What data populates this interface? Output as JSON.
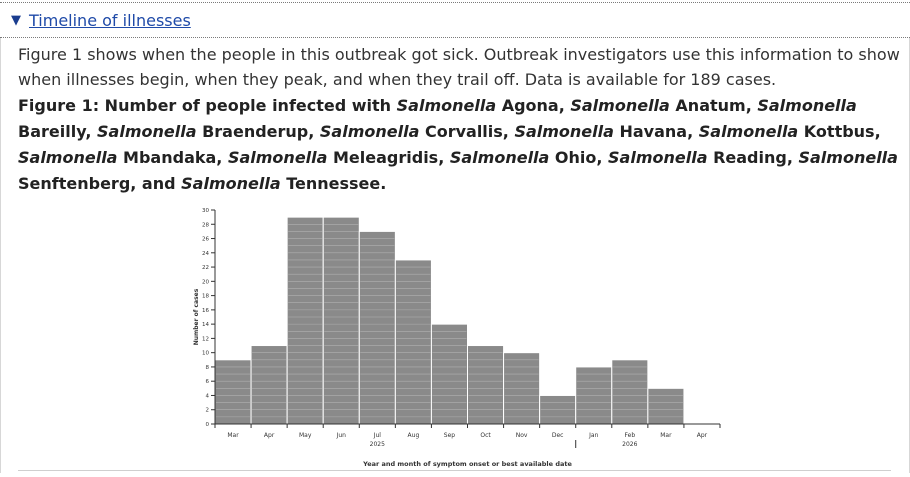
{
  "accordion": {
    "caret": "▼",
    "title": "Timeline of illnesses"
  },
  "intro_text": "Figure 1 shows when the people in this outbreak got sick. Outbreak investigators use this information to show when illnesses begin, when they peak, and when they trail off. Data is available for 189 cases.",
  "figure_title": {
    "prefix": "Figure 1: Number of people infected with ",
    "genus": "Salmonella",
    "serotypes": [
      "Agona",
      "Anatum",
      "Bareilly",
      "Braenderup",
      "Corvallis",
      "Havana",
      "Kottbus",
      "Mbandaka",
      "Meleagridis",
      "Ohio",
      "Reading",
      "Senftenberg"
    ],
    "last_serotype": "Tennessee",
    "separator": ", ",
    "conjunction": "and ",
    "end": "."
  },
  "chart_data": {
    "type": "bar",
    "categories": [
      "Mar",
      "Apr",
      "May",
      "Jun",
      "Jul",
      "Aug",
      "Sep",
      "Oct",
      "Nov",
      "Dec",
      "Jan",
      "Feb",
      "Mar",
      "Apr"
    ],
    "values": [
      9,
      11,
      29,
      29,
      27,
      23,
      14,
      11,
      10,
      4,
      8,
      9,
      5,
      0
    ],
    "year_labels": [
      {
        "text": "2025",
        "category_index": 4
      },
      {
        "text": "2026",
        "category_index": 11
      }
    ],
    "ylabel": "Number of cases",
    "xlabel": "Year and month of symptom onset or best available date",
    "ylim": [
      0,
      30
    ],
    "yticks": [
      0,
      2,
      4,
      6,
      8,
      10,
      12,
      14,
      16,
      18,
      20,
      22,
      24,
      26,
      28,
      30
    ],
    "bar_color": "#8a8a8a",
    "bar_line_color": "#b0b0b0",
    "grid": false
  }
}
